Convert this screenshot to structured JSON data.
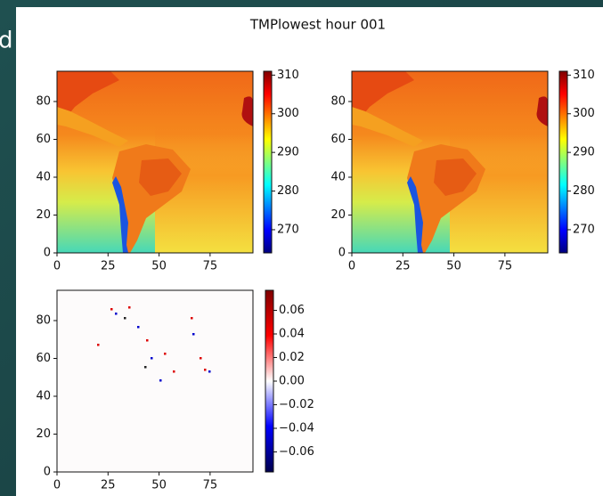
{
  "slide_fragment": "d",
  "figure": {
    "title": "TMPlowest hour 001"
  },
  "chart_data": [
    {
      "type": "heatmap",
      "colormap": "jet",
      "xlim": [
        0,
        96
      ],
      "ylim": [
        0,
        96
      ],
      "xticks": [
        0,
        25,
        50,
        75
      ],
      "yticks": [
        0,
        20,
        40,
        60,
        80
      ],
      "clim": [
        264,
        311
      ],
      "cticks": [
        270,
        280,
        290,
        300,
        310
      ]
    },
    {
      "type": "heatmap",
      "colormap": "jet",
      "xlim": [
        0,
        96
      ],
      "ylim": [
        0,
        96
      ],
      "xticks": [
        0,
        25,
        50,
        75
      ],
      "yticks": [
        0,
        20,
        40,
        60,
        80
      ],
      "clim": [
        264,
        311
      ],
      "cticks": [
        270,
        280,
        290,
        300,
        310
      ]
    },
    {
      "type": "heatmap",
      "colormap": "seismic",
      "xlim": [
        0,
        96
      ],
      "ylim": [
        0,
        96
      ],
      "xticks": [
        0,
        25,
        50,
        75
      ],
      "yticks": [
        0,
        20,
        40,
        60,
        80
      ],
      "clim": [
        -0.077,
        0.077
      ],
      "cticks": [
        {
          "value": -0.06,
          "label": "−0.06"
        },
        {
          "value": -0.04,
          "label": "−0.04"
        },
        {
          "value": -0.02,
          "label": "−0.02"
        },
        {
          "value": 0,
          "label": "0.00"
        },
        0.02,
        0.04,
        0.06
      ]
    }
  ]
}
